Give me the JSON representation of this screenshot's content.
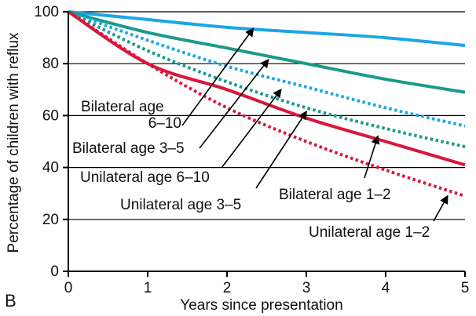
{
  "panel_label": "B",
  "colors": {
    "blue": "#1ba6e6",
    "teal": "#1b9a8a",
    "red": "#d9173c",
    "grid": "#000000",
    "text": "#111111"
  },
  "chart_data": {
    "type": "line",
    "xlabel": "Years since presentation",
    "ylabel": "Percentage of children with reflux",
    "xlim": [
      0,
      5
    ],
    "ylim": [
      0,
      100
    ],
    "xticks": [
      0,
      1,
      2,
      3,
      4,
      5
    ],
    "yticks": [
      0,
      20,
      40,
      60,
      80,
      100
    ],
    "grid": "horizontal",
    "series": [
      {
        "name": "Bilateral age 6–10",
        "color": "blue",
        "style": "solid",
        "x": [
          0,
          1,
          2,
          3,
          4,
          5
        ],
        "y": [
          100,
          97,
          94,
          92,
          90,
          87
        ]
      },
      {
        "name": "Bilateral age 3–5",
        "color": "teal",
        "style": "solid",
        "x": [
          0,
          1,
          2,
          3,
          4,
          5
        ],
        "y": [
          100,
          92,
          86,
          80,
          74,
          69
        ]
      },
      {
        "name": "Unilateral age 6–10",
        "color": "blue",
        "style": "dotted",
        "x": [
          0,
          1,
          2,
          3,
          4,
          5
        ],
        "y": [
          100,
          89,
          79,
          71,
          63,
          56
        ]
      },
      {
        "name": "Unilateral age 3–5",
        "color": "teal",
        "style": "dotted",
        "x": [
          0,
          1,
          2,
          3,
          4,
          5
        ],
        "y": [
          100,
          85,
          73,
          63,
          55,
          48
        ]
      },
      {
        "name": "Bilateral age 1–2",
        "color": "red",
        "style": "solid",
        "x": [
          0,
          1,
          2,
          3,
          4,
          5
        ],
        "y": [
          100,
          80,
          70,
          59,
          50,
          41
        ]
      },
      {
        "name": "Unilateral age 1–2",
        "color": "red",
        "style": "dotted",
        "x": [
          0,
          1,
          2,
          3,
          4,
          5
        ],
        "y": [
          100,
          80,
          63,
          50,
          39,
          29
        ]
      }
    ],
    "annotations": [
      {
        "id": "bilateral-6-10",
        "lines": [
          "Bilateral age",
          "6–10"
        ],
        "series": 0,
        "arrow_to": [
          2.33,
          93.5
        ]
      },
      {
        "id": "bilateral-3-5",
        "lines": [
          "Bilateral age 3–5"
        ],
        "series": 1,
        "arrow_to": [
          2.52,
          81.5
        ]
      },
      {
        "id": "unilateral-6-10",
        "lines": [
          "Unilateral age 6–10"
        ],
        "series": 2,
        "arrow_to": [
          2.68,
          70
        ]
      },
      {
        "id": "unilateral-3-5",
        "lines": [
          "Unilateral age 3–5"
        ],
        "series": 3,
        "arrow_to": [
          3.0,
          61.5
        ]
      },
      {
        "id": "bilateral-1-2",
        "lines": [
          "Bilateral age 1–2"
        ],
        "series": 4,
        "arrow_to": [
          3.9,
          52
        ]
      },
      {
        "id": "unilateral-1-2",
        "lines": [
          "Unilateral age 1–2"
        ],
        "series": 5,
        "arrow_to": [
          4.78,
          29
        ]
      }
    ]
  }
}
